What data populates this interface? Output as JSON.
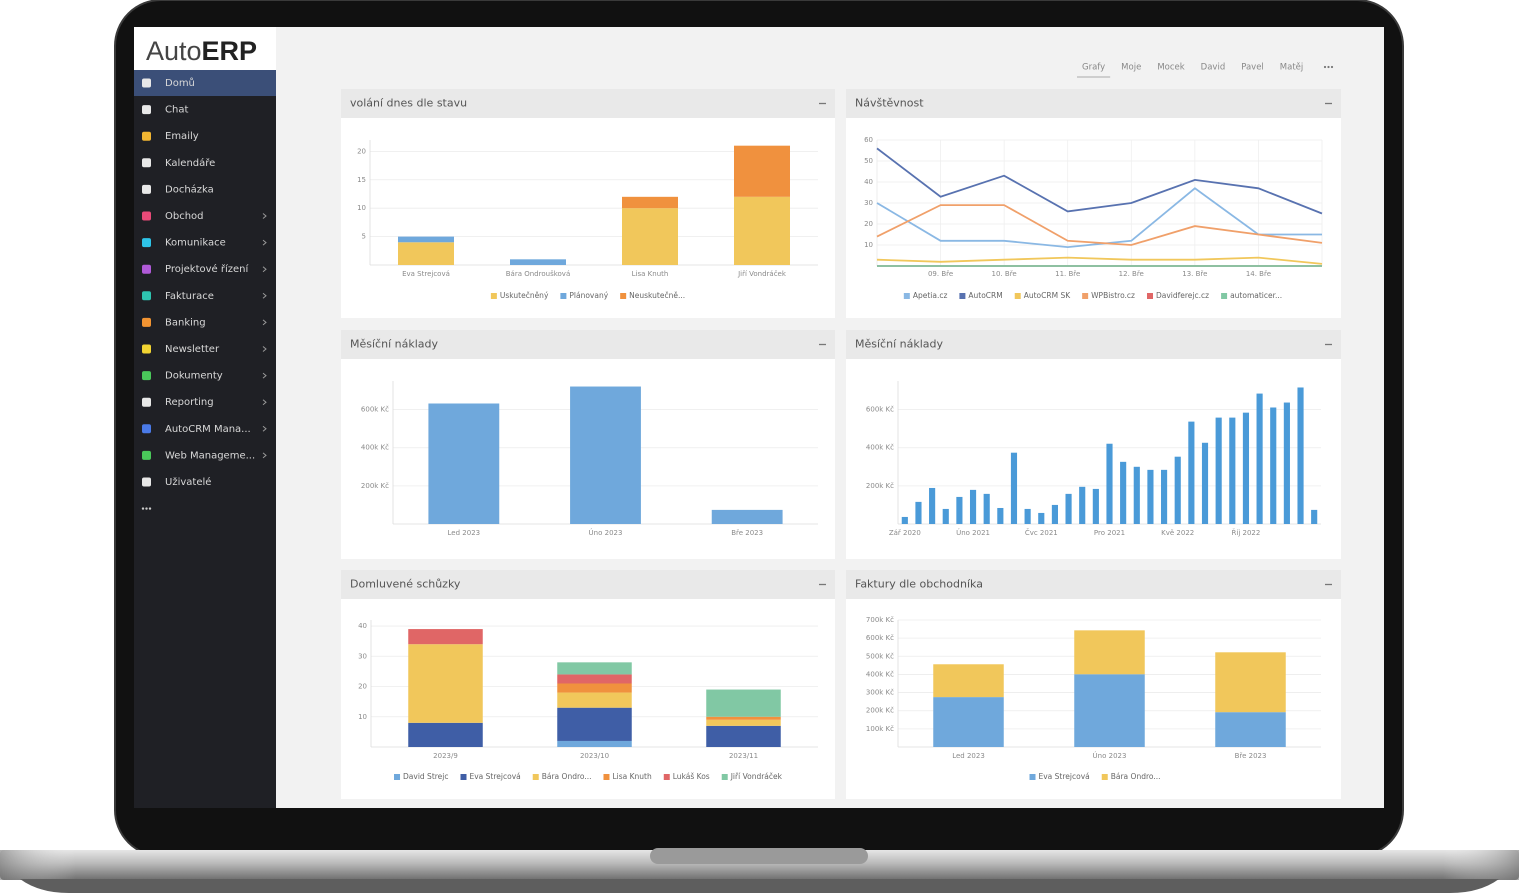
{
  "sidebar": {
    "logo": {
      "light": "Auto",
      "bold": "ERP"
    },
    "active": 0,
    "items": [
      {
        "label": "Domů",
        "submenu": false
      },
      {
        "label": "Chat",
        "submenu": false
      },
      {
        "label": "Emaily",
        "submenu": false
      },
      {
        "label": "Kalendáře",
        "submenu": false
      },
      {
        "label": "Docházka",
        "submenu": false
      },
      {
        "label": "Obchod",
        "submenu": true
      },
      {
        "label": "Komunikace",
        "submenu": true
      },
      {
        "label": "Projektové řízení",
        "submenu": true
      },
      {
        "label": "Fakturace",
        "submenu": true
      },
      {
        "label": "Banking",
        "submenu": true
      },
      {
        "label": "Newsletter",
        "submenu": true
      },
      {
        "label": "Dokumenty",
        "submenu": true
      },
      {
        "label": "Reporting",
        "submenu": true
      },
      {
        "label": "AutoCRM Mana...",
        "submenu": true
      },
      {
        "label": "Web Manageme...",
        "submenu": true
      },
      {
        "label": "Uživatelé",
        "submenu": false
      }
    ]
  },
  "tabs": {
    "active": 0,
    "items": [
      "Grafy",
      "Moje",
      "Mocek",
      "David",
      "Pavel",
      "Matěj"
    ]
  },
  "chart_data": [
    {
      "type": "bar",
      "stacked": true,
      "grid": true,
      "legend": "bottom",
      "title": "volání dnes dle stavu",
      "categories": [
        "Eva Strejcová",
        "Bára Ondroušková",
        "Lisa Knuth",
        "Jiří Vondráček"
      ],
      "series": [
        {
          "name": "Uskutečněný",
          "color": "#f1c75b",
          "values": [
            4,
            0,
            10,
            12
          ]
        },
        {
          "name": "Plánovaný",
          "color": "#6fa8dc",
          "values": [
            1,
            1,
            0,
            0
          ]
        },
        {
          "name": "Neuskutečně...",
          "color": "#f0913e",
          "values": [
            0,
            0,
            2,
            9
          ]
        }
      ],
      "ylim": [
        0,
        22
      ],
      "yticks": [
        5,
        10,
        15,
        20
      ]
    },
    {
      "type": "line",
      "grid": true,
      "legend": "bottom",
      "title": "Návštěvnost",
      "categories": [
        null,
        "09. Bře",
        "10. Bře",
        "11. Bře",
        "12. Bře",
        "13. Bře",
        "14. Bře",
        null
      ],
      "series": [
        {
          "name": "Apetia.cz",
          "color": "#8ab8e4",
          "values": [
            30,
            12,
            12,
            9,
            12,
            37,
            15,
            15
          ]
        },
        {
          "name": "AutoCRM",
          "color": "#5872b0",
          "values": [
            56,
            33,
            43,
            26,
            30,
            41,
            37,
            25
          ]
        },
        {
          "name": "AutoCRM SK",
          "color": "#f1c75b",
          "values": [
            3,
            2,
            3,
            4,
            3,
            3,
            4,
            1
          ]
        },
        {
          "name": "WPBistro.cz",
          "color": "#f0a06a",
          "values": [
            14,
            29,
            29,
            12,
            10,
            19,
            15,
            11
          ]
        },
        {
          "name": "Davidferejc.cz",
          "color": "#e06666",
          "values": [
            0,
            0,
            0,
            0,
            0,
            0,
            0,
            0
          ]
        },
        {
          "name": "automaticer...",
          "color": "#81c8a4",
          "values": [
            0,
            0,
            0,
            0,
            0,
            0,
            0,
            0
          ]
        }
      ],
      "ylim": [
        0,
        60
      ],
      "yticks": [
        10,
        20,
        30,
        40,
        50,
        60
      ]
    },
    {
      "type": "bar",
      "grid": true,
      "title": "Měsíční náklady",
      "categories": [
        "Led 2023",
        "Úno 2023",
        "Bře 2023"
      ],
      "color": "#6fa8dc",
      "values": [
        632000,
        721000,
        74000
      ],
      "ylim": [
        0,
        750000
      ],
      "yticks": [
        {
          "value": 200000,
          "label": "200k Kč"
        },
        {
          "value": 400000,
          "label": "400k Kč"
        },
        {
          "value": 600000,
          "label": "600k Kč"
        }
      ]
    },
    {
      "type": "bar",
      "grid": true,
      "title": "Měsíční náklady",
      "categories": [
        "Zář 2020",
        null,
        null,
        null,
        null,
        "Úno 2021",
        null,
        null,
        null,
        null,
        "Čvc 2021",
        null,
        null,
        null,
        null,
        "Pro 2021",
        null,
        null,
        null,
        null,
        "Kvě 2022",
        null,
        null,
        null,
        null,
        "Říj 2022",
        null,
        null,
        null,
        null,
        null
      ],
      "color": "#4a9ad8",
      "values": [
        37000,
        116000,
        189000,
        79000,
        142000,
        179000,
        158000,
        84000,
        374000,
        79000,
        58000,
        100000,
        158000,
        195000,
        184000,
        421000,
        326000,
        300000,
        284000,
        284000,
        353000,
        537000,
        426000,
        558000,
        558000,
        584000,
        684000,
        611000,
        637000,
        716000,
        74000
      ],
      "ylim": [
        0,
        750000
      ],
      "yticks": [
        {
          "value": 200000,
          "label": "200k Kč"
        },
        {
          "value": 400000,
          "label": "400k Kč"
        },
        {
          "value": 600000,
          "label": "600k Kč"
        }
      ]
    },
    {
      "type": "bar",
      "stacked": true,
      "grid": true,
      "legend": "bottom",
      "title": "Domluvené schůzky",
      "categories": [
        "2023/9",
        "2023/10",
        "2023/11"
      ],
      "series": [
        {
          "name": "David Strejc",
          "color": "#6fa8dc",
          "values": [
            0,
            2,
            0
          ]
        },
        {
          "name": "Eva Strejcová",
          "color": "#3f5ea6",
          "values": [
            8,
            11,
            7
          ]
        },
        {
          "name": "Bára Ondro...",
          "color": "#f1c75b",
          "values": [
            26,
            5,
            2
          ]
        },
        {
          "name": "Lisa Knuth",
          "color": "#f0913e",
          "values": [
            0,
            3,
            1
          ]
        },
        {
          "name": "Lukáš Kos",
          "color": "#e06666",
          "values": [
            5,
            3,
            0
          ]
        },
        {
          "name": "Jiří Vondráček",
          "color": "#81c8a4",
          "values": [
            0,
            4,
            9
          ]
        }
      ],
      "ylim": [
        0,
        42
      ],
      "yticks": [
        10,
        20,
        30,
        40
      ]
    },
    {
      "type": "bar",
      "stacked": true,
      "grid": true,
      "legend": "bottom",
      "title": "Faktury dle obchodníka",
      "categories": [
        "Led 2023",
        "Úno 2023",
        "Bře 2023"
      ],
      "series": [
        {
          "name": "Eva Strejcová",
          "color": "#6fa8dc",
          "values": [
            275000,
            401000,
            192000
          ]
        },
        {
          "name": "Bára Ondro...",
          "color": "#f1c75b",
          "values": [
            181000,
            242000,
            330000
          ]
        }
      ],
      "ylim": [
        0,
        700000
      ],
      "yticks": [
        {
          "value": 100000,
          "label": "100k Kč"
        },
        {
          "value": 200000,
          "label": "200k Kč"
        },
        {
          "value": 300000,
          "label": "300k Kč"
        },
        {
          "value": 400000,
          "label": "400k Kč"
        },
        {
          "value": 500000,
          "label": "500k Kč"
        },
        {
          "value": 600000,
          "label": "600k Kč"
        },
        {
          "value": 700000,
          "label": "700k Kč"
        }
      ]
    }
  ]
}
